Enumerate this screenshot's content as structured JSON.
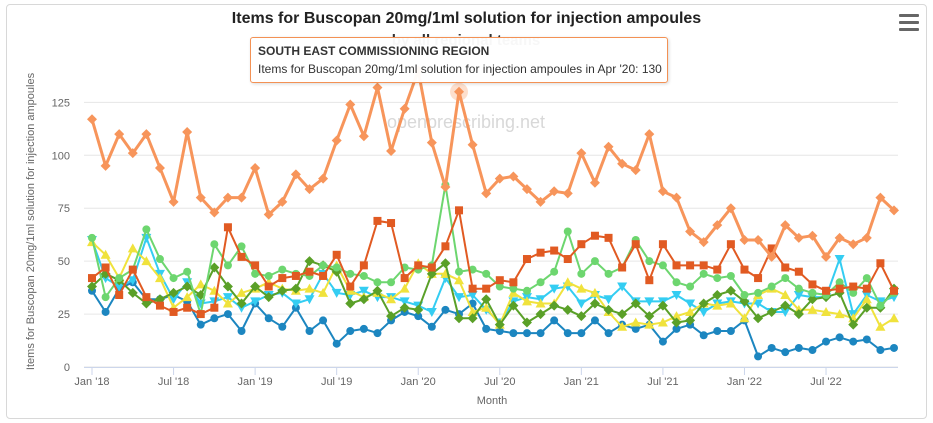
{
  "chart_data": {
    "type": "line",
    "title": "Items for Buscopan 20mg/1ml solution for injection ampoules",
    "subtitle": "by all regional teams",
    "watermark": "openprescribing.net",
    "xlabel": "Month",
    "ylabel": "Items for Buscopan 20mg/1ml solution for injection ampoules",
    "ylim": [
      0,
      145
    ],
    "yticks": [
      0,
      25,
      50,
      75,
      100,
      125
    ],
    "x_start": "2018-01",
    "x_count": 60,
    "xticks": [
      {
        "label": "Jan '18",
        "index": 0
      },
      {
        "label": "Jul '18",
        "index": 6
      },
      {
        "label": "Jan '19",
        "index": 12
      },
      {
        "label": "Jul '19",
        "index": 18
      },
      {
        "label": "Jan '20",
        "index": 24
      },
      {
        "label": "Jul '20",
        "index": 30
      },
      {
        "label": "Jan '21",
        "index": 36
      },
      {
        "label": "Jul '21",
        "index": 42
      },
      {
        "label": "Jan '22",
        "index": 48
      },
      {
        "label": "Jul '22",
        "index": 54
      }
    ],
    "grid": true,
    "legend": "none",
    "series": [
      {
        "color": "#f7955b",
        "marker": "diamond",
        "width": 3,
        "values": [
          117,
          95,
          110,
          101,
          110,
          94,
          78,
          111,
          80,
          73,
          80,
          80,
          94,
          72,
          78,
          91,
          84,
          89,
          107,
          124,
          109,
          132,
          102,
          122,
          140,
          106,
          85,
          130,
          105,
          82,
          89,
          90,
          84,
          78,
          83,
          82,
          101,
          87,
          104,
          96,
          93,
          110,
          83,
          80,
          64,
          59,
          67,
          75,
          60,
          60,
          52,
          67,
          61,
          62,
          52,
          61,
          58,
          61,
          80,
          74
        ]
      },
      {
        "color": "#e15a22",
        "marker": "square",
        "width": 2,
        "values": [
          42,
          47,
          34,
          46,
          33,
          29,
          26,
          28,
          25,
          28,
          66,
          52,
          48,
          38,
          42,
          43,
          45,
          43,
          53,
          38,
          48,
          69,
          68,
          42,
          48,
          47,
          57,
          74,
          37,
          37,
          41,
          40,
          51,
          54,
          55,
          51,
          58,
          62,
          61,
          47,
          58,
          41,
          58,
          48,
          48,
          48,
          46,
          58,
          46,
          42,
          56,
          47,
          45,
          39,
          36,
          37,
          38,
          37,
          49,
          36
        ]
      },
      {
        "color": "#6dd66f",
        "marker": "circle",
        "width": 2,
        "values": [
          61,
          33,
          42,
          46,
          65,
          51,
          42,
          45,
          25,
          58,
          48,
          57,
          44,
          43,
          46,
          44,
          43,
          48,
          47,
          44,
          43,
          40,
          40,
          47,
          46,
          48,
          86,
          45,
          46,
          44,
          38,
          37,
          36,
          40,
          45,
          64,
          44,
          50,
          44,
          47,
          60,
          50,
          48,
          40,
          38,
          44,
          42,
          43,
          34,
          35,
          38,
          42,
          37,
          35,
          34,
          40,
          35,
          42,
          29,
          35
        ]
      },
      {
        "color": "#5aa028",
        "marker": "diamond",
        "width": 2,
        "values": [
          38,
          44,
          41,
          35,
          30,
          32,
          35,
          38,
          34,
          47,
          38,
          30,
          38,
          33,
          36,
          37,
          50,
          48,
          45,
          30,
          32,
          36,
          24,
          28,
          27,
          44,
          49,
          23,
          23,
          32,
          20,
          29,
          21,
          25,
          29,
          27,
          24,
          30,
          27,
          25,
          30,
          24,
          29,
          21,
          22,
          30,
          34,
          36,
          31,
          23,
          26,
          29,
          25,
          32,
          33,
          35,
          20,
          28,
          28,
          37
        ]
      },
      {
        "color": "#f0e23c",
        "marker": "triangle",
        "width": 2,
        "values": [
          59,
          53,
          42,
          56,
          50,
          42,
          28,
          33,
          39,
          36,
          30,
          35,
          37,
          40,
          37,
          36,
          37,
          35,
          48,
          36,
          33,
          35,
          32,
          37,
          49,
          44,
          44,
          41,
          26,
          28,
          20,
          35,
          31,
          30,
          30,
          40,
          37,
          35,
          26,
          19,
          21,
          20,
          21,
          24,
          26,
          30,
          29,
          30,
          23,
          34,
          37,
          34,
          27,
          27,
          26,
          25,
          23,
          32,
          19,
          23
        ]
      },
      {
        "color": "#34cdf2",
        "marker": "triangle-down",
        "width": 2,
        "values": [
          60,
          42,
          38,
          41,
          61,
          44,
          32,
          40,
          30,
          31,
          33,
          28,
          31,
          34,
          35,
          30,
          32,
          44,
          35,
          34,
          36,
          33,
          33,
          31,
          29,
          26,
          42,
          33,
          34,
          27,
          21,
          31,
          33,
          32,
          37,
          38,
          30,
          34,
          32,
          38,
          31,
          31,
          31,
          34,
          30,
          26,
          30,
          31,
          30,
          30,
          26,
          26,
          34,
          33,
          33,
          51,
          25,
          34,
          31,
          33
        ]
      },
      {
        "color": "#1c86c0",
        "marker": "circle",
        "width": 2,
        "values": [
          36,
          26,
          37,
          40,
          32,
          32,
          34,
          31,
          20,
          23,
          25,
          17,
          30,
          23,
          19,
          28,
          17,
          22,
          11,
          17,
          18,
          16,
          22,
          26,
          24,
          19,
          27,
          25,
          30,
          18,
          17,
          16,
          16,
          16,
          22,
          16,
          16,
          22,
          16,
          20,
          18,
          20,
          12,
          18,
          20,
          15,
          17,
          17,
          22,
          5,
          9,
          7,
          9,
          8,
          12,
          14,
          12,
          13,
          8,
          9
        ]
      }
    ],
    "tooltip": {
      "header": "SOUTH EAST COMMISSIONING REGION",
      "text": "Items for Buscopan 20mg/1ml solution for injection ampoules in Apr '20: 130",
      "series_index": 0,
      "point_index": 27
    }
  }
}
